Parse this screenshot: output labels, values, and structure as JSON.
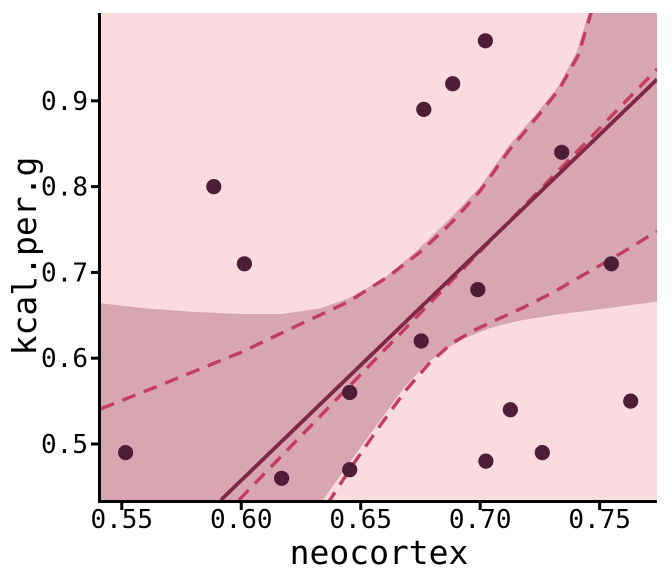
{
  "chart_data": {
    "type": "scatter",
    "title": "",
    "xlabel": "neocortex",
    "ylabel": "kcal.per.g",
    "xlim": [
      0.5413,
      0.774
    ],
    "ylim": [
      0.4347,
      1.0024
    ],
    "grid": false,
    "legend": "none",
    "xticks": {
      "values": [
        0.55,
        0.6,
        0.65,
        0.7,
        0.75
      ],
      "labels": [
        "0.55",
        "0.60",
        "0.65",
        "0.70",
        "0.75"
      ]
    },
    "yticks": {
      "values": [
        0.5,
        0.6,
        0.7,
        0.8,
        0.9
      ],
      "labels": [
        "0.5",
        "0.6",
        "0.7",
        "0.8",
        "0.9"
      ]
    },
    "points": [
      [
        0.5516,
        0.49
      ],
      [
        0.5885,
        0.8
      ],
      [
        0.6013,
        0.71
      ],
      [
        0.6169,
        0.46
      ],
      [
        0.6454,
        0.47
      ],
      [
        0.6454,
        0.56
      ],
      [
        0.6753,
        0.62
      ],
      [
        0.6764,
        0.89
      ],
      [
        0.6885,
        0.92
      ],
      [
        0.699,
        0.68
      ],
      [
        0.7022,
        0.97
      ],
      [
        0.7024,
        0.48
      ],
      [
        0.7126,
        0.54
      ],
      [
        0.726,
        0.49
      ],
      [
        0.7341,
        0.84
      ],
      [
        0.7549,
        0.71
      ],
      [
        0.763,
        0.55
      ]
    ],
    "solid_regression_line": [
      [
        0.5915,
        0.4347
      ],
      [
        0.774,
        0.925
      ]
    ],
    "dashed_regression_line": [
      [
        0.599,
        0.4347
      ],
      [
        0.774,
        0.937
      ]
    ],
    "dashed_interval_upper": [
      [
        0.5413,
        0.541
      ],
      [
        0.57,
        0.573
      ],
      [
        0.6,
        0.607
      ],
      [
        0.625,
        0.64
      ],
      [
        0.645,
        0.666
      ],
      [
        0.662,
        0.696
      ],
      [
        0.675,
        0.724
      ],
      [
        0.688,
        0.758
      ],
      [
        0.7,
        0.795
      ],
      [
        0.712,
        0.842
      ],
      [
        0.7235,
        0.88
      ],
      [
        0.733,
        0.913
      ],
      [
        0.741,
        0.953
      ],
      [
        0.747,
        1.008
      ]
    ],
    "dashed_interval_lower": [
      [
        0.636,
        0.43
      ],
      [
        0.647,
        0.477
      ],
      [
        0.658,
        0.521
      ],
      [
        0.669,
        0.563
      ],
      [
        0.679,
        0.595
      ],
      [
        0.688,
        0.617
      ],
      [
        0.697,
        0.632
      ],
      [
        0.707,
        0.645
      ],
      [
        0.718,
        0.659
      ],
      [
        0.73,
        0.676
      ],
      [
        0.745,
        0.7
      ],
      [
        0.76,
        0.724
      ],
      [
        0.774,
        0.748
      ]
    ],
    "band_upper_boundary": [
      [
        0.5413,
        0.664
      ],
      [
        0.56,
        0.658
      ],
      [
        0.58,
        0.654
      ],
      [
        0.6,
        0.6515
      ],
      [
        0.617,
        0.6515
      ],
      [
        0.633,
        0.658
      ],
      [
        0.6455,
        0.6705
      ],
      [
        0.66,
        0.694
      ],
      [
        0.673,
        0.724
      ],
      [
        0.6874,
        0.763
      ],
      [
        0.7,
        0.8
      ],
      [
        0.712,
        0.848
      ],
      [
        0.7235,
        0.885
      ],
      [
        0.733,
        0.918
      ],
      [
        0.7405,
        0.958
      ],
      [
        0.746,
        1.008
      ]
    ],
    "band_lower_boundary": [
      [
        0.633,
        0.43
      ],
      [
        0.645,
        0.477
      ],
      [
        0.657,
        0.523
      ],
      [
        0.668,
        0.565
      ],
      [
        0.678,
        0.595
      ],
      [
        0.687,
        0.613
      ],
      [
        0.695,
        0.625
      ],
      [
        0.704,
        0.635
      ],
      [
        0.715,
        0.643
      ],
      [
        0.73,
        0.65
      ],
      [
        0.75,
        0.657
      ],
      [
        0.774,
        0.666
      ]
    ],
    "colors": {
      "plot_background": "#f9dbe0",
      "shaded_band": "#d8a6b3",
      "dashed_lines": "#c23d61",
      "solid_line": "#7f2745",
      "points": "#4e1e37",
      "axis": "#000000"
    }
  }
}
